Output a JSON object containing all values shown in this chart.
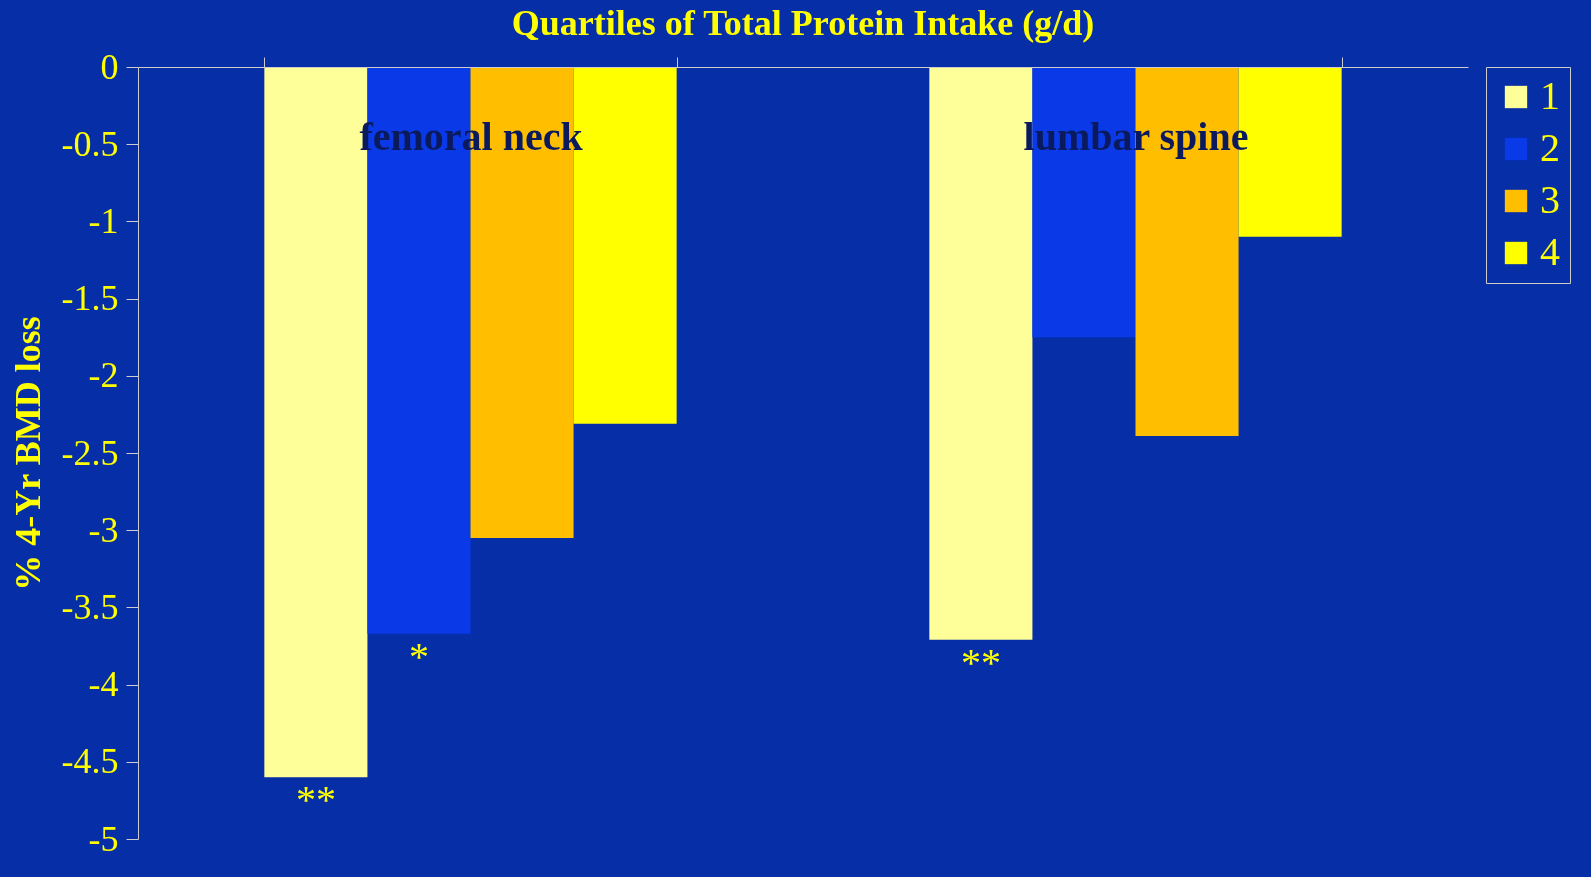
{
  "chart_data": {
    "type": "bar",
    "title": "Quartiles of Total Protein Intake (g/d)",
    "ylabel": "% 4-Yr BMD loss",
    "categories": [
      "femoral neck",
      "lumbar spine"
    ],
    "series": [
      {
        "name": "1",
        "color": "#ffff99",
        "values": [
          -4.6,
          -3.71
        ]
      },
      {
        "name": "2",
        "color": "#0a3ae8",
        "values": [
          -3.67,
          -1.75
        ]
      },
      {
        "name": "3",
        "color": "#ffbf00",
        "values": [
          -3.05,
          -2.39
        ]
      },
      {
        "name": "4",
        "color": "#ffff00",
        "values": [
          -2.31,
          -1.1
        ]
      }
    ],
    "ylim": [
      -5,
      0
    ],
    "yticks": [
      -5,
      -4.5,
      -4,
      -3.5,
      -3,
      -2.5,
      -2,
      -1.5,
      -1,
      -0.5,
      0
    ],
    "annotations": [
      {
        "text": "**",
        "y": -4.6
      },
      {
        "text": "*",
        "y": -3.67
      },
      {
        "text": "**",
        "y": -3.71
      }
    ],
    "grid": false,
    "legend": "right"
  }
}
